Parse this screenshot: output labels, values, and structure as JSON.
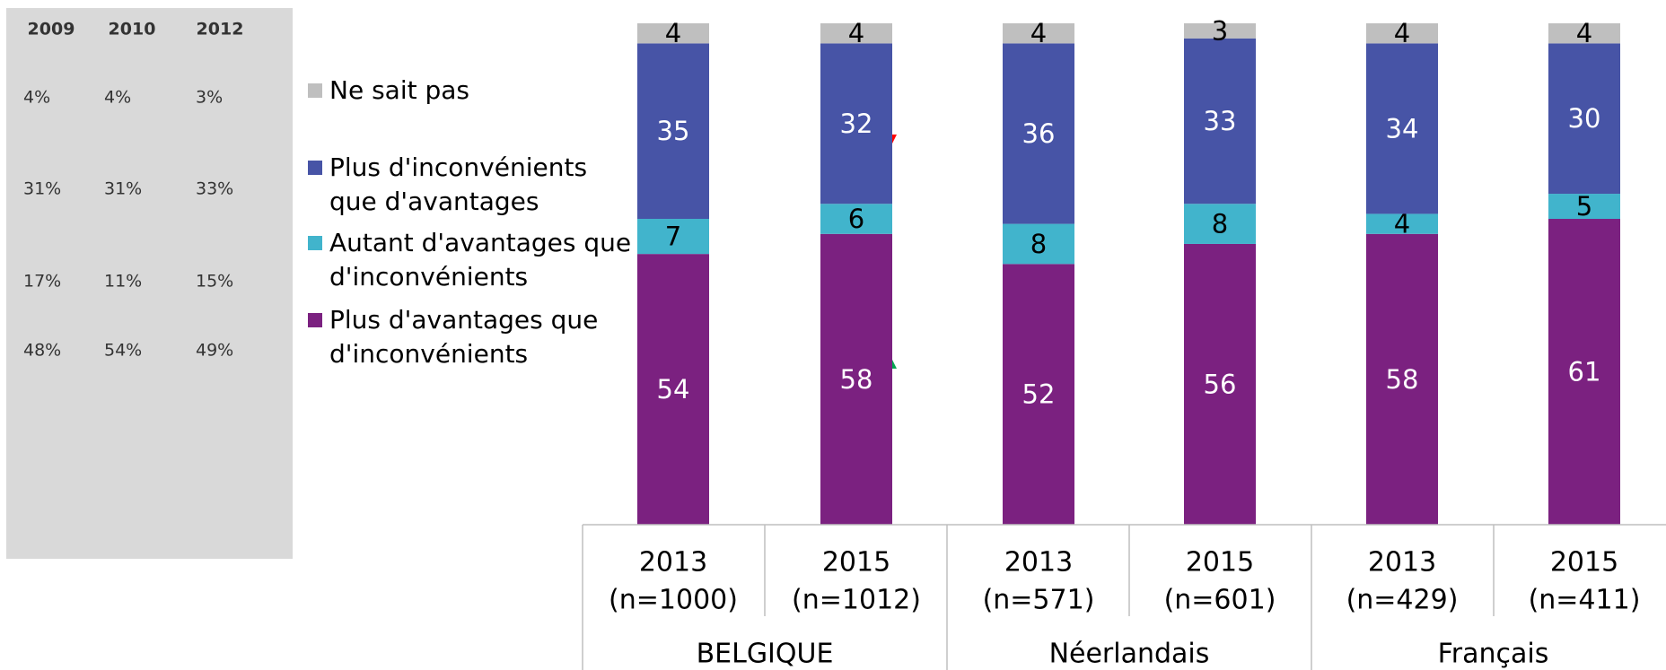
{
  "chart_data": {
    "type": "stacked_bar",
    "categories": [
      "2013",
      "2015",
      "2013",
      "2015",
      "2013",
      "2015"
    ],
    "sample_sizes": [
      "(n=1000)",
      "(n=1012)",
      "(n=571)",
      "(n=601)",
      "(n=429)",
      "(n=411)"
    ],
    "groups": [
      "BELGIQUE",
      "Néerlandais",
      "Français"
    ],
    "ylim": [
      0,
      100
    ],
    "series": [
      {
        "name": "Plus d'avantages que d'inconvénients",
        "color": "#7b2180",
        "values": [
          54,
          58,
          52,
          56,
          58,
          61
        ]
      },
      {
        "name": "Autant d'avantages que d'inconvénients",
        "color": "#41b4cc",
        "values": [
          7,
          6,
          8,
          8,
          4,
          5
        ]
      },
      {
        "name": "Plus d'inconvénients que d'avantages",
        "color": "#4754a6",
        "values": [
          35,
          32,
          36,
          33,
          34,
          30
        ]
      },
      {
        "name": "Ne sait pas",
        "color": "#bfbfbf",
        "values": [
          4,
          4,
          4,
          3,
          4,
          4
        ]
      }
    ]
  },
  "side_table": {
    "headers": [
      "2009",
      "2010",
      "2012"
    ],
    "rows": [
      [
        "4%",
        "4%",
        "3%"
      ],
      [
        "31%",
        "31%",
        "33%"
      ],
      [
        "17%",
        "11%",
        "15%"
      ],
      [
        "48%",
        "54%",
        "49%"
      ]
    ]
  }
}
